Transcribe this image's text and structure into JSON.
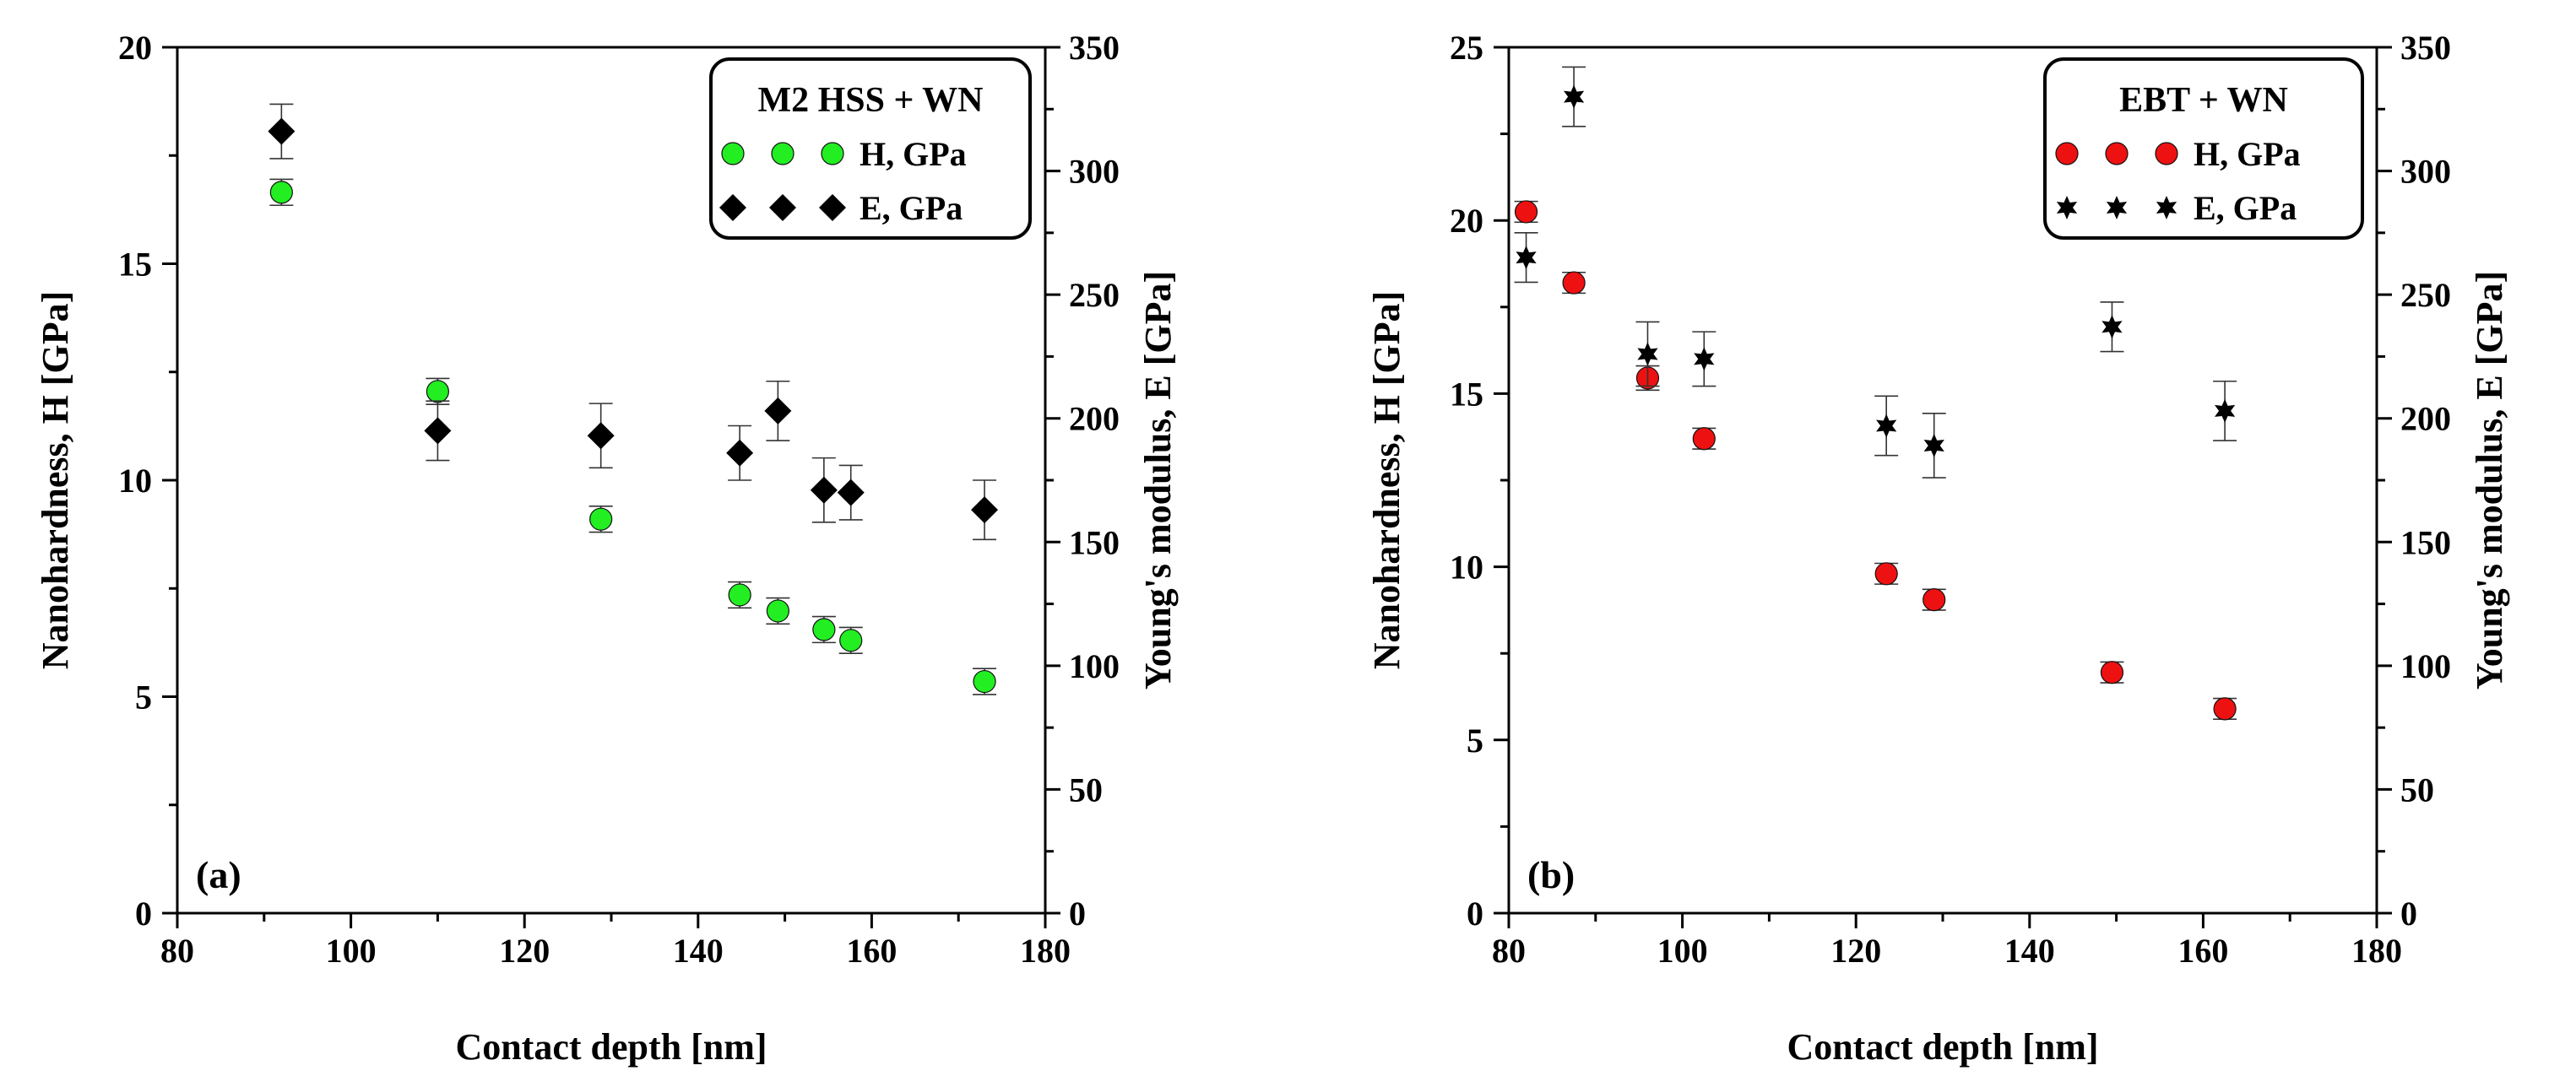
{
  "chart_data": [
    {
      "type": "scatter",
      "panel_label": "(a)",
      "xlabel": "Contact depth [nm]",
      "ylabel_left": "Nanohardness, H [GPa]",
      "ylabel_right": "Young's modulus, E [GPa]",
      "xlim": [
        80,
        180
      ],
      "ylim_left": [
        0,
        20
      ],
      "ylim_right": [
        0,
        350
      ],
      "x_ticks": [
        "80",
        "100",
        "120",
        "140",
        "160",
        "180"
      ],
      "y_left_ticks": [
        "0",
        "5",
        "10",
        "15",
        "20"
      ],
      "y_right_ticks": [
        "0",
        "50",
        "100",
        "150",
        "200",
        "250",
        "300",
        "350"
      ],
      "legend_title": "M2 HSS + WN",
      "series": [
        {
          "name": "H, GPa",
          "axis": "left",
          "marker": "circle",
          "color": "#22ee22",
          "points": [
            {
              "x": 92,
              "y": 16.65,
              "err": 0.3
            },
            {
              "x": 110,
              "y": 12.05,
              "err": 0.3
            },
            {
              "x": 128.8,
              "y": 9.1,
              "err": 0.3
            },
            {
              "x": 144.8,
              "y": 7.35,
              "err": 0.3
            },
            {
              "x": 149.2,
              "y": 6.98,
              "err": 0.3
            },
            {
              "x": 154.5,
              "y": 6.55,
              "err": 0.3
            },
            {
              "x": 157.6,
              "y": 6.3,
              "err": 0.3
            },
            {
              "x": 173,
              "y": 5.35,
              "err": 0.3
            }
          ]
        },
        {
          "name": "E, GPa",
          "axis": "right",
          "marker": "diamond",
          "color": "#000000",
          "points": [
            {
              "x": 92,
              "y": 316,
              "err": 11
            },
            {
              "x": 110,
              "y": 195,
              "err": 12
            },
            {
              "x": 128.8,
              "y": 193,
              "err": 13
            },
            {
              "x": 144.8,
              "y": 186,
              "err": 11
            },
            {
              "x": 149.2,
              "y": 203,
              "err": 12
            },
            {
              "x": 154.5,
              "y": 171,
              "err": 13
            },
            {
              "x": 157.6,
              "y": 170,
              "err": 11
            },
            {
              "x": 173,
              "y": 163,
              "err": 12
            }
          ]
        }
      ]
    },
    {
      "type": "scatter",
      "panel_label": "(b)",
      "xlabel": "Contact depth [nm]",
      "ylabel_left": "Nanohardness, H [GPa]",
      "ylabel_right": "Young's modulus, E [GPa]",
      "xlim": [
        80,
        180
      ],
      "ylim_left": [
        0,
        25
      ],
      "ylim_right": [
        0,
        350
      ],
      "x_ticks": [
        "80",
        "100",
        "120",
        "140",
        "160",
        "180"
      ],
      "y_left_ticks": [
        "0",
        "5",
        "10",
        "15",
        "20",
        "25"
      ],
      "y_right_ticks": [
        "0",
        "50",
        "100",
        "150",
        "200",
        "250",
        "300",
        "350"
      ],
      "legend_title": "EBT + WN",
      "series": [
        {
          "name": "H, GPa",
          "axis": "left",
          "marker": "circle",
          "color": "#ee1111",
          "points": [
            {
              "x": 82,
              "y": 20.25,
              "err": 0.3
            },
            {
              "x": 87.5,
              "y": 18.2,
              "err": 0.3
            },
            {
              "x": 96,
              "y": 15.45,
              "err": 0.35
            },
            {
              "x": 102.5,
              "y": 13.7,
              "err": 0.3
            },
            {
              "x": 123.5,
              "y": 9.8,
              "err": 0.3
            },
            {
              "x": 129,
              "y": 9.05,
              "err": 0.3
            },
            {
              "x": 149.5,
              "y": 6.95,
              "err": 0.3
            },
            {
              "x": 162.5,
              "y": 5.9,
              "err": 0.3
            }
          ]
        },
        {
          "name": "E, GPa",
          "axis": "right",
          "marker": "star",
          "color": "#000000",
          "points": [
            {
              "x": 82,
              "y": 265,
              "err": 10
            },
            {
              "x": 87.5,
              "y": 330,
              "err": 12
            },
            {
              "x": 96,
              "y": 226,
              "err": 13
            },
            {
              "x": 102.5,
              "y": 224,
              "err": 11
            },
            {
              "x": 123.5,
              "y": 197,
              "err": 12
            },
            {
              "x": 129,
              "y": 189,
              "err": 13
            },
            {
              "x": 149.5,
              "y": 237,
              "err": 10
            },
            {
              "x": 162.5,
              "y": 203,
              "err": 12
            }
          ]
        }
      ]
    }
  ]
}
